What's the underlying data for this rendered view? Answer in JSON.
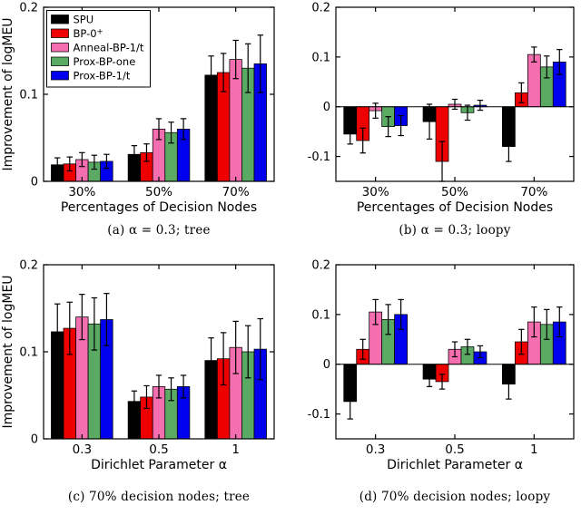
{
  "page": {
    "background": "#ffffff"
  },
  "methods": [
    {
      "name": "SPU",
      "label": "SPU",
      "color": "#000000"
    },
    {
      "name": "BP-0+",
      "label": "BP-0",
      "superscript": "+",
      "color": "#ee0000"
    },
    {
      "name": "Anneal-BP-1/t",
      "label": "Anneal-BP-1/t",
      "color": "#f56eb0"
    },
    {
      "name": "Prox-BP-one",
      "label": "Prox-BP-one",
      "color": "#5aaa64"
    },
    {
      "name": "Prox-BP-1/t",
      "label": "Prox-BP-1/t",
      "color": "#0000ee"
    }
  ],
  "chart_data": [
    {
      "id": "a",
      "type": "bar",
      "caption": "(a) α = 0.3; tree",
      "xlabel": "Percentages of Decision Nodes",
      "ylabel": "Improvement of logMEU",
      "categories": [
        "30%",
        "50%",
        "70%"
      ],
      "ylim": [
        0,
        0.2
      ],
      "yticks": [
        0,
        0.1,
        0.2
      ],
      "ytick_labels": [
        "0",
        "0.1",
        "0.2"
      ],
      "legend": true,
      "legend_position": "top-left",
      "series": [
        {
          "name": "SPU",
          "values": [
            0.019,
            0.031,
            0.122
          ],
          "errors": [
            0.008,
            0.01,
            0.022
          ]
        },
        {
          "name": "BP-0+",
          "values": [
            0.02,
            0.033,
            0.125
          ],
          "errors": [
            0.008,
            0.01,
            0.022
          ]
        },
        {
          "name": "Anneal-BP-1/t",
          "values": [
            0.025,
            0.06,
            0.14
          ],
          "errors": [
            0.008,
            0.012,
            0.022
          ]
        },
        {
          "name": "Prox-BP-one",
          "values": [
            0.022,
            0.056,
            0.13
          ],
          "errors": [
            0.008,
            0.012,
            0.028
          ]
        },
        {
          "name": "Prox-BP-1/t",
          "values": [
            0.023,
            0.06,
            0.135
          ],
          "errors": [
            0.008,
            0.012,
            0.033
          ]
        }
      ]
    },
    {
      "id": "b",
      "type": "bar",
      "caption": "(b) α = 0.3; loopy",
      "xlabel": "Percentages of Decision Nodes",
      "categories": [
        "30%",
        "50%",
        "70%"
      ],
      "ylim": [
        -0.15,
        0.2
      ],
      "yticks": [
        -0.1,
        0,
        0.1,
        0.2
      ],
      "ytick_labels": [
        "-0.1",
        "0",
        "0.1",
        "0.2"
      ],
      "legend": false,
      "series": [
        {
          "name": "SPU",
          "values": [
            -0.055,
            -0.03,
            -0.08
          ],
          "errors": [
            0.02,
            0.035,
            0.03
          ]
        },
        {
          "name": "BP-0+",
          "values": [
            -0.068,
            -0.11,
            0.028
          ],
          "errors": [
            0.025,
            0.04,
            0.02
          ]
        },
        {
          "name": "Anneal-BP-1/t",
          "values": [
            -0.008,
            0.005,
            0.105
          ],
          "errors": [
            0.015,
            0.01,
            0.015
          ]
        },
        {
          "name": "Prox-BP-one",
          "values": [
            -0.04,
            -0.012,
            0.08
          ],
          "errors": [
            0.02,
            0.015,
            0.022
          ]
        },
        {
          "name": "Prox-BP-1/t",
          "values": [
            -0.038,
            0.003,
            0.09
          ],
          "errors": [
            0.02,
            0.01,
            0.025
          ]
        }
      ]
    },
    {
      "id": "c",
      "type": "bar",
      "caption": "(c) 70% decision nodes; tree",
      "xlabel": "Dirichlet Parameter α",
      "ylabel": "Improvement of logMEU",
      "categories": [
        "0.3",
        "0.5",
        "1"
      ],
      "ylim": [
        0,
        0.2
      ],
      "yticks": [
        0,
        0.1,
        0.2
      ],
      "ytick_labels": [
        "0",
        "0.1",
        "0.2"
      ],
      "legend": false,
      "series": [
        {
          "name": "SPU",
          "values": [
            0.123,
            0.043,
            0.09
          ],
          "errors": [
            0.032,
            0.012,
            0.026
          ]
        },
        {
          "name": "BP-0+",
          "values": [
            0.127,
            0.048,
            0.092
          ],
          "errors": [
            0.03,
            0.013,
            0.03
          ]
        },
        {
          "name": "Anneal-BP-1/t",
          "values": [
            0.14,
            0.06,
            0.105
          ],
          "errors": [
            0.026,
            0.013,
            0.03
          ]
        },
        {
          "name": "Prox-BP-one",
          "values": [
            0.132,
            0.057,
            0.1
          ],
          "errors": [
            0.03,
            0.013,
            0.03
          ]
        },
        {
          "name": "Prox-BP-1/t",
          "values": [
            0.137,
            0.06,
            0.103
          ],
          "errors": [
            0.03,
            0.013,
            0.035
          ]
        }
      ]
    },
    {
      "id": "d",
      "type": "bar",
      "caption": "(d) 70% decision nodes; loopy",
      "xlabel": "Dirichlet Parameter α",
      "categories": [
        "0.3",
        "0.5",
        "1"
      ],
      "ylim": [
        -0.15,
        0.2
      ],
      "yticks": [
        -0.1,
        0,
        0.1,
        0.2
      ],
      "ytick_labels": [
        "-0.1",
        "0",
        "0.1",
        "0.2"
      ],
      "legend": false,
      "series": [
        {
          "name": "SPU",
          "values": [
            -0.075,
            -0.03,
            -0.04
          ],
          "errors": [
            0.035,
            0.015,
            0.03
          ]
        },
        {
          "name": "BP-0+",
          "values": [
            0.03,
            -0.035,
            0.045
          ],
          "errors": [
            0.02,
            0.015,
            0.025
          ]
        },
        {
          "name": "Anneal-BP-1/t",
          "values": [
            0.105,
            0.03,
            0.085
          ],
          "errors": [
            0.025,
            0.015,
            0.03
          ]
        },
        {
          "name": "Prox-BP-one",
          "values": [
            0.09,
            0.035,
            0.08
          ],
          "errors": [
            0.03,
            0.015,
            0.03
          ]
        },
        {
          "name": "Prox-BP-1/t",
          "values": [
            0.1,
            0.025,
            0.085
          ],
          "errors": [
            0.03,
            0.012,
            0.03
          ]
        }
      ]
    }
  ]
}
